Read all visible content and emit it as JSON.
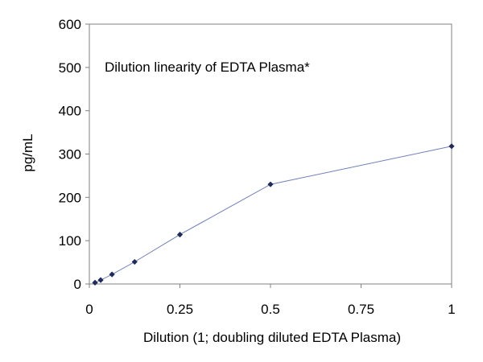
{
  "chart_data": {
    "type": "scatter",
    "title": "Dilution linearity of EDTA Plasma*",
    "xlabel": "Dilution (1; doubling diluted EDTA Plasma)",
    "ylabel": "pg/mL",
    "xlim": [
      0,
      1
    ],
    "ylim": [
      0,
      600
    ],
    "xticks": [
      0,
      0.25,
      0.5,
      0.75,
      1
    ],
    "xtick_labels": [
      "0",
      "0.25",
      "0.5",
      "0.75",
      "1"
    ],
    "yticks": [
      0,
      100,
      200,
      300,
      400,
      500,
      600
    ],
    "ytick_labels": [
      "0",
      "100",
      "200",
      "300",
      "400",
      "500",
      "600"
    ],
    "grid": false,
    "series": [
      {
        "x": [
          0.015625,
          0.03125,
          0.0625,
          0.125,
          0.25,
          0.5,
          1
        ],
        "y": [
          3,
          9,
          22,
          51,
          114,
          230,
          318
        ],
        "color": "#6f7fb8",
        "marker_color": "#1f2a5e"
      }
    ]
  }
}
